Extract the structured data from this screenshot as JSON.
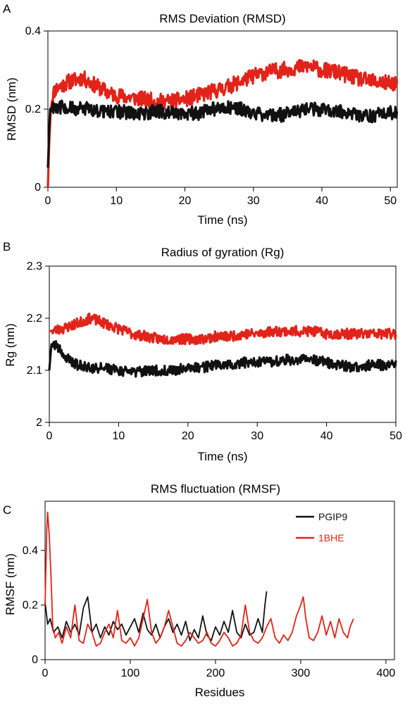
{
  "chart_data": [
    {
      "panel": "A",
      "type": "line",
      "title": "RMS Deviation (RMSD)",
      "xlabel": "Time (ns)",
      "ylabel": "RMSD (nm)",
      "xlim": [
        0,
        51
      ],
      "ylim": [
        0,
        0.4
      ],
      "xticks": [
        0,
        10,
        20,
        30,
        40,
        50
      ],
      "yticks": [
        0,
        0.2,
        0.4
      ],
      "yticklabels": [
        "0",
        "0.2",
        "0.4"
      ],
      "grid": false,
      "series": [
        {
          "color": "#e2231a",
          "noise": 0.02,
          "points": [
            [
              0,
              0
            ],
            [
              0.2,
              0.12
            ],
            [
              0.5,
              0.22
            ],
            [
              1,
              0.25
            ],
            [
              2,
              0.26
            ],
            [
              3,
              0.27
            ],
            [
              4,
              0.275
            ],
            [
              5,
              0.28
            ],
            [
              6,
              0.27
            ],
            [
              7,
              0.26
            ],
            [
              8,
              0.25
            ],
            [
              9,
              0.24
            ],
            [
              10,
              0.235
            ],
            [
              12,
              0.23
            ],
            [
              14,
              0.225
            ],
            [
              16,
              0.22
            ],
            [
              18,
              0.22
            ],
            [
              20,
              0.225
            ],
            [
              22,
              0.235
            ],
            [
              24,
              0.245
            ],
            [
              26,
              0.255
            ],
            [
              28,
              0.27
            ],
            [
              30,
              0.285
            ],
            [
              32,
              0.295
            ],
            [
              34,
              0.3
            ],
            [
              36,
              0.305
            ],
            [
              38,
              0.31
            ],
            [
              40,
              0.3
            ],
            [
              42,
              0.295
            ],
            [
              44,
              0.285
            ],
            [
              46,
              0.275
            ],
            [
              48,
              0.27
            ],
            [
              50,
              0.265
            ],
            [
              51,
              0.27
            ]
          ]
        },
        {
          "color": "#111111",
          "noise": 0.018,
          "points": [
            [
              0,
              0.05
            ],
            [
              0.3,
              0.2
            ],
            [
              1,
              0.21
            ],
            [
              2,
              0.205
            ],
            [
              4,
              0.2
            ],
            [
              6,
              0.2
            ],
            [
              8,
              0.195
            ],
            [
              10,
              0.195
            ],
            [
              12,
              0.19
            ],
            [
              14,
              0.19
            ],
            [
              16,
              0.195
            ],
            [
              18,
              0.19
            ],
            [
              20,
              0.19
            ],
            [
              22,
              0.19
            ],
            [
              24,
              0.2
            ],
            [
              26,
              0.205
            ],
            [
              28,
              0.2
            ],
            [
              30,
              0.19
            ],
            [
              32,
              0.185
            ],
            [
              34,
              0.185
            ],
            [
              36,
              0.19
            ],
            [
              38,
              0.2
            ],
            [
              40,
              0.2
            ],
            [
              42,
              0.195
            ],
            [
              44,
              0.19
            ],
            [
              46,
              0.18
            ],
            [
              48,
              0.185
            ],
            [
              50,
              0.19
            ],
            [
              51,
              0.19
            ]
          ]
        }
      ]
    },
    {
      "panel": "B",
      "type": "line",
      "title": "Radius of gyration (Rg)",
      "xlabel": "Time (ns)",
      "ylabel": "Rg (nm)",
      "xlim": [
        0,
        50
      ],
      "ylim": [
        2,
        2.3
      ],
      "xticks": [
        0,
        10,
        20,
        30,
        40,
        50
      ],
      "yticks": [
        2,
        2.1,
        2.2,
        2.3
      ],
      "yticklabels": [
        "2",
        "2.1",
        "2.2",
        "2.3"
      ],
      "grid": false,
      "series": [
        {
          "color": "#e2231a",
          "noise": 0.01,
          "points": [
            [
              0,
              2.175
            ],
            [
              2,
              2.18
            ],
            [
              4,
              2.19
            ],
            [
              6,
              2.2
            ],
            [
              8,
              2.19
            ],
            [
              10,
              2.18
            ],
            [
              12,
              2.17
            ],
            [
              14,
              2.165
            ],
            [
              16,
              2.16
            ],
            [
              18,
              2.16
            ],
            [
              20,
              2.16
            ],
            [
              22,
              2.16
            ],
            [
              24,
              2.165
            ],
            [
              26,
              2.165
            ],
            [
              28,
              2.17
            ],
            [
              30,
              2.17
            ],
            [
              32,
              2.175
            ],
            [
              34,
              2.175
            ],
            [
              36,
              2.175
            ],
            [
              38,
              2.175
            ],
            [
              40,
              2.17
            ],
            [
              42,
              2.17
            ],
            [
              44,
              2.17
            ],
            [
              46,
              2.17
            ],
            [
              48,
              2.17
            ],
            [
              50,
              2.17
            ]
          ]
        },
        {
          "color": "#111111",
          "noise": 0.01,
          "points": [
            [
              0,
              2.1
            ],
            [
              0.3,
              2.15
            ],
            [
              1,
              2.15
            ],
            [
              2,
              2.13
            ],
            [
              3,
              2.12
            ],
            [
              4,
              2.11
            ],
            [
              6,
              2.105
            ],
            [
              8,
              2.105
            ],
            [
              10,
              2.1
            ],
            [
              12,
              2.095
            ],
            [
              14,
              2.1
            ],
            [
              16,
              2.1
            ],
            [
              18,
              2.1
            ],
            [
              20,
              2.105
            ],
            [
              22,
              2.105
            ],
            [
              24,
              2.11
            ],
            [
              26,
              2.11
            ],
            [
              28,
              2.115
            ],
            [
              30,
              2.115
            ],
            [
              32,
              2.115
            ],
            [
              34,
              2.12
            ],
            [
              36,
              2.12
            ],
            [
              38,
              2.12
            ],
            [
              40,
              2.115
            ],
            [
              42,
              2.11
            ],
            [
              44,
              2.105
            ],
            [
              46,
              2.11
            ],
            [
              48,
              2.11
            ],
            [
              50,
              2.115
            ]
          ]
        }
      ]
    },
    {
      "panel": "C",
      "type": "line",
      "title": "RMS fluctuation (RMSF)",
      "xlabel": "Residues",
      "ylabel": "RMSF (nm)",
      "xlim": [
        0,
        410
      ],
      "ylim": [
        0,
        0.58
      ],
      "xticks": [
        0,
        100,
        200,
        300,
        400
      ],
      "yticks": [
        0,
        0.2,
        0.4
      ],
      "yticklabels": [
        "0",
        "0.2",
        "0.4"
      ],
      "grid": false,
      "legend_position": "top-right",
      "series": [
        {
          "name": "PGIP9",
          "color": "#111111",
          "points": [
            [
              0,
              0.21
            ],
            [
              3,
              0.13
            ],
            [
              6,
              0.15
            ],
            [
              10,
              0.1
            ],
            [
              15,
              0.12
            ],
            [
              20,
              0.08
            ],
            [
              25,
              0.14
            ],
            [
              30,
              0.1
            ],
            [
              35,
              0.13
            ],
            [
              40,
              0.09
            ],
            [
              45,
              0.19
            ],
            [
              50,
              0.23
            ],
            [
              55,
              0.1
            ],
            [
              60,
              0.13
            ],
            [
              65,
              0.08
            ],
            [
              70,
              0.12
            ],
            [
              75,
              0.09
            ],
            [
              80,
              0.14
            ],
            [
              85,
              0.11
            ],
            [
              90,
              0.13
            ],
            [
              95,
              0.09
            ],
            [
              100,
              0.12
            ],
            [
              105,
              0.15
            ],
            [
              110,
              0.1
            ],
            [
              115,
              0.17
            ],
            [
              120,
              0.11
            ],
            [
              125,
              0.09
            ],
            [
              130,
              0.13
            ],
            [
              135,
              0.08
            ],
            [
              140,
              0.12
            ],
            [
              145,
              0.15
            ],
            [
              150,
              0.1
            ],
            [
              155,
              0.13
            ],
            [
              160,
              0.09
            ],
            [
              165,
              0.14
            ],
            [
              170,
              0.07
            ],
            [
              175,
              0.11
            ],
            [
              180,
              0.08
            ],
            [
              185,
              0.16
            ],
            [
              190,
              0.09
            ],
            [
              195,
              0.07
            ],
            [
              200,
              0.12
            ],
            [
              205,
              0.09
            ],
            [
              210,
              0.14
            ],
            [
              215,
              0.1
            ],
            [
              220,
              0.18
            ],
            [
              225,
              0.1
            ],
            [
              230,
              0.08
            ],
            [
              235,
              0.13
            ],
            [
              240,
              0.09
            ],
            [
              245,
              0.1
            ],
            [
              250,
              0.15
            ],
            [
              255,
              0.1
            ],
            [
              258,
              0.2
            ],
            [
              260,
              0.25
            ]
          ]
        },
        {
          "name": "1BHE",
          "color": "#e2231a",
          "points": [
            [
              0,
              0.2
            ],
            [
              2,
              0.48
            ],
            [
              3,
              0.54
            ],
            [
              5,
              0.45
            ],
            [
              7,
              0.3
            ],
            [
              9,
              0.12
            ],
            [
              12,
              0.08
            ],
            [
              16,
              0.1
            ],
            [
              20,
              0.06
            ],
            [
              25,
              0.12
            ],
            [
              30,
              0.08
            ],
            [
              35,
              0.2
            ],
            [
              40,
              0.07
            ],
            [
              45,
              0.06
            ],
            [
              50,
              0.13
            ],
            [
              55,
              0.1
            ],
            [
              60,
              0.05
            ],
            [
              65,
              0.06
            ],
            [
              70,
              0.1
            ],
            [
              75,
              0.13
            ],
            [
              80,
              0.08
            ],
            [
              85,
              0.18
            ],
            [
              90,
              0.07
            ],
            [
              95,
              0.06
            ],
            [
              100,
              0.08
            ],
            [
              105,
              0.05
            ],
            [
              110,
              0.08
            ],
            [
              115,
              0.15
            ],
            [
              120,
              0.22
            ],
            [
              125,
              0.1
            ],
            [
              130,
              0.06
            ],
            [
              135,
              0.08
            ],
            [
              140,
              0.12
            ],
            [
              145,
              0.18
            ],
            [
              150,
              0.12
            ],
            [
              155,
              0.06
            ],
            [
              160,
              0.05
            ],
            [
              165,
              0.07
            ],
            [
              170,
              0.1
            ],
            [
              175,
              0.08
            ],
            [
              180,
              0.06
            ],
            [
              185,
              0.07
            ],
            [
              190,
              0.1
            ],
            [
              195,
              0.06
            ],
            [
              200,
              0.05
            ],
            [
              205,
              0.07
            ],
            [
              210,
              0.1
            ],
            [
              215,
              0.08
            ],
            [
              220,
              0.05
            ],
            [
              225,
              0.06
            ],
            [
              230,
              0.09
            ],
            [
              235,
              0.2
            ],
            [
              240,
              0.1
            ],
            [
              245,
              0.07
            ],
            [
              250,
              0.06
            ],
            [
              255,
              0.08
            ],
            [
              260,
              0.12
            ],
            [
              265,
              0.15
            ],
            [
              270,
              0.08
            ],
            [
              275,
              0.06
            ],
            [
              280,
              0.09
            ],
            [
              285,
              0.07
            ],
            [
              290,
              0.1
            ],
            [
              295,
              0.16
            ],
            [
              300,
              0.2
            ],
            [
              303,
              0.23
            ],
            [
              306,
              0.15
            ],
            [
              310,
              0.08
            ],
            [
              315,
              0.07
            ],
            [
              320,
              0.1
            ],
            [
              325,
              0.16
            ],
            [
              330,
              0.09
            ],
            [
              335,
              0.14
            ],
            [
              340,
              0.08
            ],
            [
              345,
              0.15
            ],
            [
              350,
              0.1
            ],
            [
              355,
              0.08
            ],
            [
              358,
              0.12
            ],
            [
              362,
              0.15
            ]
          ]
        }
      ]
    }
  ]
}
